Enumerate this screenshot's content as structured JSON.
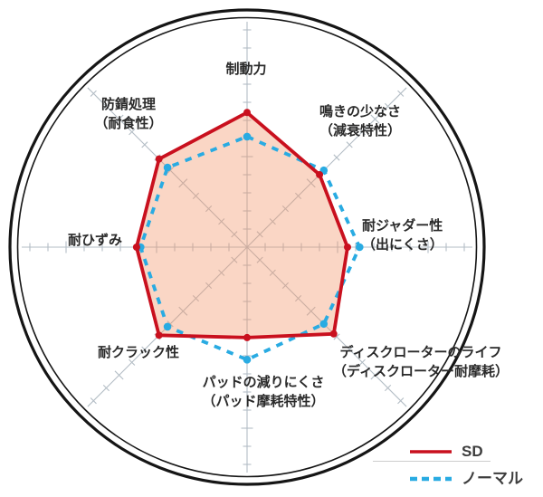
{
  "chart_data": {
    "type": "radar",
    "title": "",
    "axes_count": 8,
    "categories": [
      {
        "id": "braking",
        "label": "制動力",
        "label2": ""
      },
      {
        "id": "squeal",
        "label": "鳴きの少なさ",
        "label2": "（減衰特性）"
      },
      {
        "id": "judder",
        "label": "耐ジャダー性",
        "label2": "（出にくさ）"
      },
      {
        "id": "rotor-life",
        "label": "ディスクローターのライフ",
        "label2": "（ディスクローター耐摩耗）"
      },
      {
        "id": "pad-wear",
        "label": "パッドの減りにくさ",
        "label2": "（パッド摩耗特性）"
      },
      {
        "id": "crack",
        "label": "耐クラック性",
        "label2": ""
      },
      {
        "id": "distortion",
        "label": "耐ひずみ",
        "label2": ""
      },
      {
        "id": "rust",
        "label": "防錆処理",
        "label2": "（耐食性）"
      }
    ],
    "series": [
      {
        "name": "SD",
        "style": "solid",
        "color": "#c9101e",
        "values": [
          6.7,
          5.1,
          5.0,
          6.1,
          4.5,
          6.2,
          5.5,
          6.2
        ]
      },
      {
        "name": "ノーマル",
        "style": "dashed",
        "color": "#29abe2",
        "values": [
          5.5,
          5.4,
          5.6,
          5.4,
          5.6,
          5.6,
          5.3,
          5.6
        ]
      }
    ],
    "scale": {
      "min": 0,
      "max": 11,
      "tick_step": 1
    },
    "legend_position": "bottom-right",
    "grid": "radial-ticks",
    "colors": {
      "ring": "#151515",
      "grid": "#b3bdc5",
      "fill": "#f29466",
      "fill_opacity": 0.38,
      "label_text": "#2a2a2a",
      "legend_text": "#3d3d3d"
    }
  }
}
